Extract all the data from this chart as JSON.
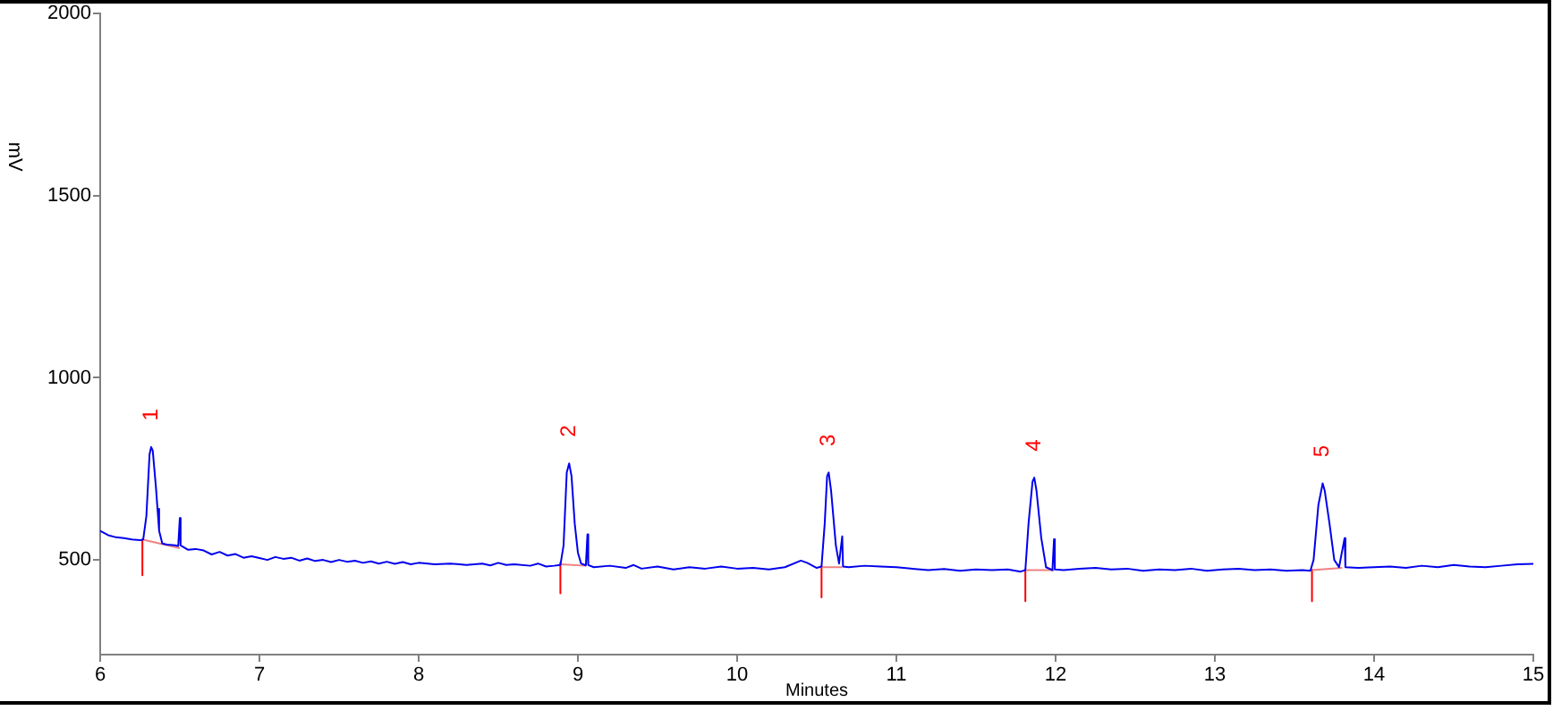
{
  "chart_data": {
    "type": "line",
    "xlabel": "Minutes",
    "ylabel": "mV",
    "xlim": [
      6,
      15
    ],
    "xticks": [
      6,
      7,
      8,
      9,
      10,
      11,
      12,
      13,
      14,
      15
    ],
    "ylim": [
      240,
      2000
    ],
    "yticks": [
      500,
      1000,
      1500,
      2000
    ],
    "annotations": [
      {
        "text": "1",
        "x": 6.32,
        "y": 810
      },
      {
        "text": "2",
        "x": 8.945,
        "y": 765
      },
      {
        "text": "3",
        "x": 10.575,
        "y": 740
      },
      {
        "text": "4",
        "x": 11.866,
        "y": 726
      },
      {
        "text": "5",
        "x": 13.677,
        "y": 710
      }
    ],
    "series": [
      {
        "color": "#0000ee",
        "x": [
          6.0,
          6.05,
          6.1,
          6.15,
          6.2,
          6.25,
          6.27,
          6.29,
          6.31,
          6.32,
          6.33,
          6.35,
          6.36,
          6.37,
          6.39,
          6.42,
          6.47,
          6.49,
          6.5,
          6.505,
          6.55,
          6.6,
          6.65,
          6.7,
          6.75,
          6.8,
          6.85,
          6.9,
          6.95,
          7.0,
          7.05,
          7.1,
          7.15,
          7.2,
          7.25,
          7.3,
          7.35,
          7.4,
          7.45,
          7.5,
          7.55,
          7.6,
          7.65,
          7.7,
          7.75,
          7.8,
          7.85,
          7.9,
          7.95,
          8.0,
          8.1,
          8.2,
          8.3,
          8.4,
          8.45,
          8.5,
          8.55,
          8.6,
          8.7,
          8.75,
          8.8,
          8.85,
          8.89,
          8.91,
          8.93,
          8.945,
          8.96,
          8.98,
          9.0,
          9.02,
          9.05,
          9.06,
          9.065,
          9.1,
          9.2,
          9.3,
          9.35,
          9.4,
          9.5,
          9.6,
          9.7,
          9.8,
          9.9,
          10.0,
          10.1,
          10.2,
          10.3,
          10.4,
          10.44,
          10.5,
          10.53,
          10.55,
          10.565,
          10.575,
          10.59,
          10.62,
          10.64,
          10.66,
          10.665,
          10.7,
          10.8,
          10.9,
          11.0,
          11.1,
          11.2,
          11.3,
          11.4,
          11.5,
          11.6,
          11.7,
          11.78,
          11.81,
          11.83,
          11.855,
          11.866,
          11.88,
          11.91,
          11.94,
          11.98,
          11.99,
          11.995,
          12.05,
          12.15,
          12.25,
          12.35,
          12.45,
          12.55,
          12.65,
          12.75,
          12.85,
          12.95,
          13.05,
          13.15,
          13.25,
          13.35,
          13.45,
          13.55,
          13.6,
          13.62,
          13.65,
          13.677,
          13.69,
          13.72,
          13.75,
          13.78,
          13.815,
          13.82,
          13.9,
          14.0,
          14.1,
          14.2,
          14.3,
          14.4,
          14.5,
          14.6,
          14.7,
          14.8,
          14.9,
          15.0
        ],
        "values": [
          580,
          568,
          562,
          560,
          556,
          554,
          556,
          620,
          790,
          810,
          800,
          700,
          640,
          580,
          545,
          542,
          540,
          538,
          615,
          540,
          528,
          530,
          526,
          515,
          522,
          512,
          516,
          506,
          510,
          505,
          500,
          508,
          503,
          506,
          498,
          504,
          497,
          500,
          494,
          500,
          495,
          498,
          492,
          496,
          490,
          495,
          489,
          494,
          488,
          492,
          488,
          490,
          486,
          490,
          485,
          492,
          486,
          488,
          484,
          490,
          482,
          484,
          486,
          540,
          740,
          765,
          730,
          600,
          520,
          490,
          485,
          570,
          486,
          480,
          484,
          478,
          486,
          476,
          482,
          474,
          480,
          476,
          482,
          476,
          478,
          474,
          480,
          498,
          492,
          478,
          482,
          600,
          730,
          740,
          690,
          540,
          490,
          565,
          482,
          480,
          484,
          482,
          480,
          476,
          472,
          475,
          470,
          474,
          472,
          474,
          468,
          472,
          600,
          715,
          726,
          690,
          560,
          480,
          472,
          557,
          474,
          472,
          476,
          478,
          474,
          476,
          470,
          474,
          472,
          476,
          470,
          474,
          476,
          472,
          474,
          470,
          472,
          470,
          500,
          650,
          710,
          690,
          600,
          500,
          480,
          560,
          480,
          478,
          480,
          482,
          478,
          484,
          480,
          486,
          482,
          480,
          484,
          488,
          489
        ]
      },
      {
        "color": "#f08080",
        "x": [
          6.265,
          6.5
        ],
        "values": [
          556,
          532
        ]
      },
      {
        "color": "#f08080",
        "x": [
          8.89,
          9.05
        ],
        "values": [
          488,
          484
        ]
      },
      {
        "color": "#f08080",
        "x": [
          10.53,
          10.66
        ],
        "values": [
          480,
          480
        ]
      },
      {
        "color": "#f08080",
        "x": [
          11.81,
          11.99
        ],
        "values": [
          472,
          472
        ]
      },
      {
        "color": "#f08080",
        "x": [
          13.61,
          13.8
        ],
        "values": [
          472,
          478
        ]
      },
      {
        "color": "#ff0000",
        "x": [
          6.265,
          6.265
        ],
        "values": [
          556,
          458
        ]
      },
      {
        "color": "#ff0000",
        "x": [
          8.89,
          8.89
        ],
        "values": [
          492,
          408
        ]
      },
      {
        "color": "#ff0000",
        "x": [
          10.53,
          10.53
        ],
        "values": [
          484,
          397
        ]
      },
      {
        "color": "#ff0000",
        "x": [
          11.81,
          11.81
        ],
        "values": [
          473,
          387
        ]
      },
      {
        "color": "#ff0000",
        "x": [
          13.61,
          13.61
        ],
        "values": [
          473,
          387
        ]
      }
    ]
  }
}
